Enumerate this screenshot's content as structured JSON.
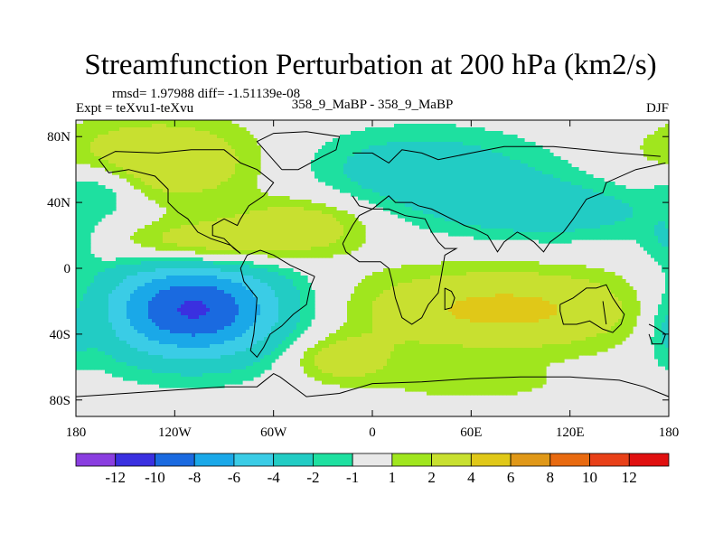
{
  "chart_data": {
    "type": "heatmap",
    "title": "Streamfunction Perturbation at 200 hPa (km2/s)",
    "stats_text": "rmsd= 1.97988 diff= -1.51139e-08",
    "left_label": "Expt = teXvu1-teXvu",
    "center_label": "358_9_MaBP - 358_9_MaBP",
    "right_label": "DJF",
    "xlim": [
      -180,
      180
    ],
    "ylim": [
      -90,
      90
    ],
    "x_ticks": [
      {
        "value": -180,
        "label": "180"
      },
      {
        "value": -120,
        "label": "120W"
      },
      {
        "value": -60,
        "label": "60W"
      },
      {
        "value": 0,
        "label": "0"
      },
      {
        "value": 60,
        "label": "60E"
      },
      {
        "value": 120,
        "label": "120E"
      },
      {
        "value": 180,
        "label": "180"
      }
    ],
    "y_ticks": [
      {
        "value": 80,
        "label": "80N"
      },
      {
        "value": 40,
        "label": "40N"
      },
      {
        "value": 0,
        "label": "0"
      },
      {
        "value": -40,
        "label": "40S"
      },
      {
        "value": -80,
        "label": "80S"
      }
    ],
    "levels": [
      -12,
      -10,
      -8,
      -6,
      -4,
      -2,
      -1,
      1,
      2,
      4,
      6,
      8,
      10,
      12
    ],
    "colorbar_colors": [
      "#8a3ee0",
      "#3a30e0",
      "#1a6ae0",
      "#1aa8e8",
      "#3acce6",
      "#22ccc4",
      "#1ee0a0",
      "#e8e8e8",
      "#a0e61e",
      "#c8e030",
      "#e0c818",
      "#e09818",
      "#e86a10",
      "#e84018",
      "#e01010"
    ],
    "field_blobs": [
      {
        "lon": -130,
        "lat": 65,
        "amp": 4.2,
        "sx": 45,
        "sy": 18
      },
      {
        "lon": -165,
        "lat": 50,
        "amp": -2.8,
        "sx": 18,
        "sy": 12
      },
      {
        "lon": -100,
        "lat": 15,
        "amp": 4.5,
        "sx": 40,
        "sy": 10
      },
      {
        "lon": -40,
        "lat": 28,
        "amp": 3.0,
        "sx": 30,
        "sy": 12
      },
      {
        "lon": -110,
        "lat": -25,
        "amp": -10.5,
        "sx": 42,
        "sy": 22
      },
      {
        "lon": -20,
        "lat": -55,
        "amp": 3.2,
        "sx": 22,
        "sy": 10
      },
      {
        "lon": 30,
        "lat": 60,
        "amp": -3.2,
        "sx": 55,
        "sy": 18
      },
      {
        "lon": 110,
        "lat": 35,
        "amp": -3.0,
        "sx": 55,
        "sy": 14
      },
      {
        "lon": 80,
        "lat": -25,
        "amp": 4.5,
        "sx": 70,
        "sy": 18
      },
      {
        "lon": 60,
        "lat": -70,
        "amp": 1.5,
        "sx": 40,
        "sy": 8
      },
      {
        "lon": 178,
        "lat": 15,
        "amp": -1.8,
        "sx": 10,
        "sy": 10
      },
      {
        "lon": 178,
        "lat": -40,
        "amp": -1.6,
        "sx": 8,
        "sy": 15
      }
    ]
  }
}
